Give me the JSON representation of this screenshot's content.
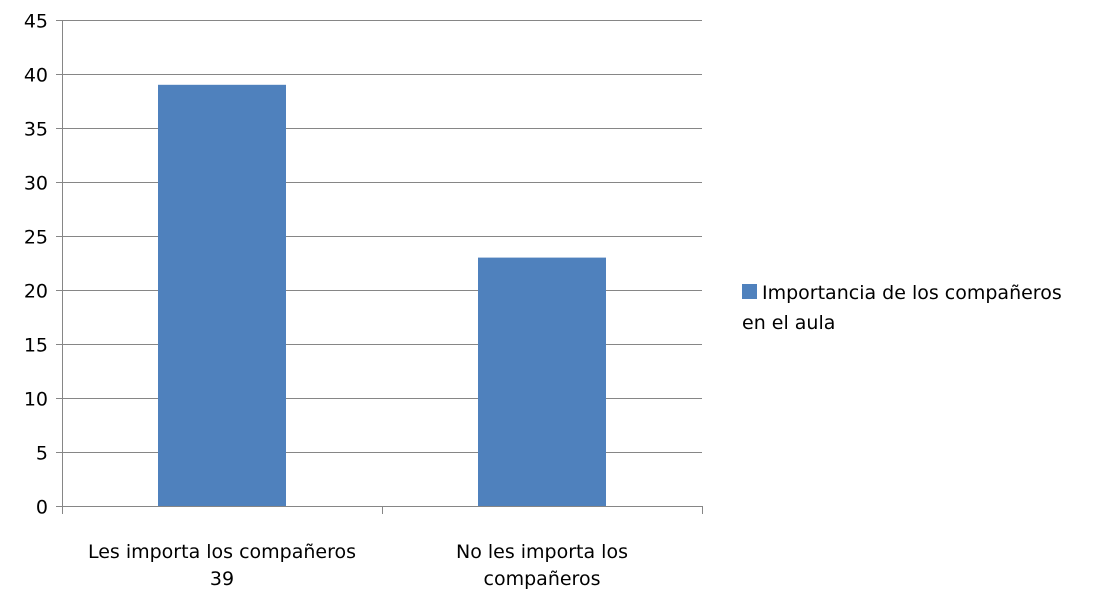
{
  "chart_data": {
    "type": "bar",
    "categories": [
      [
        "Les importa los compañeros",
        "39"
      ],
      [
        "No les importa los",
        "compañeros"
      ]
    ],
    "series": [
      {
        "name": [
          "Importancia de los compañeros",
          "en el aula"
        ],
        "values": [
          39,
          23
        ],
        "color": "#4f81bd"
      }
    ],
    "ylim": [
      0,
      45
    ],
    "yticks": [
      0,
      5,
      10,
      15,
      20,
      25,
      30,
      35,
      40,
      45
    ],
    "grid": true,
    "gridline_color": "#868686",
    "legend_position": "right"
  }
}
